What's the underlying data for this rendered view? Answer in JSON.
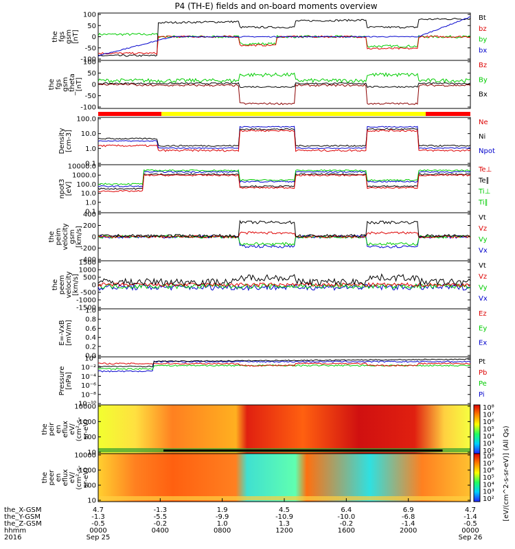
{
  "chart_data": {
    "type": "line",
    "title": "P4 (TH-E) fields and on-board moments overview",
    "status_bar": [
      "red",
      "yellow",
      "red"
    ],
    "panels": [
      {
        "id": "fgs",
        "ylabel": [
          "the",
          "fgs",
          "gsm",
          "[nT]"
        ],
        "yticks": [
          "100",
          "50",
          "0",
          "-50",
          "-100"
        ],
        "ylim": [
          -100,
          100
        ],
        "legend": [
          [
            "Bt",
            "#000"
          ],
          [
            "bz",
            "#d00"
          ],
          [
            "by",
            "#0c0"
          ],
          [
            "bx",
            "#00c"
          ]
        ]
      },
      {
        "id": "fgs_theta",
        "ylabel": [
          "the",
          "fgs",
          "gsm",
          "_theta",
          "[nT]"
        ],
        "yticks": [
          "100",
          "50",
          "0",
          "-50",
          "-100"
        ],
        "ylim": [
          -100,
          100
        ],
        "legend": [
          [
            "Bz",
            "#d00"
          ],
          [
            "By",
            "#0c0"
          ],
          [
            "Bx",
            "#000"
          ]
        ]
      },
      {
        "id": "density",
        "ylabel": [
          "Density",
          "[cm-3]"
        ],
        "yticks": [
          "100.0",
          "10.0",
          "1.0",
          "0.1"
        ],
        "log": true,
        "ylim": [
          0.1,
          100
        ],
        "legend": [
          [
            "Ne",
            "#d00"
          ],
          [
            "Ni",
            "#000"
          ],
          [
            "Npot",
            "#00c"
          ]
        ]
      },
      {
        "id": "temp",
        "ylabel": [
          "npot3",
          "[eV]"
        ],
        "yticks": [
          "10000.0",
          "1000.0",
          "100.0",
          "10.0",
          "1.0",
          "0.1"
        ],
        "log": true,
        "ylim": [
          0.1,
          10000
        ],
        "legend": [
          [
            "Te⊥",
            "#d00"
          ],
          [
            "Te∥",
            "#000"
          ],
          [
            "Ti⊥",
            "#0c0"
          ],
          [
            "Ti∥",
            "#0c0"
          ]
        ]
      },
      {
        "id": "peim_v",
        "ylabel": [
          "the",
          "peim",
          "velocity",
          "gsm",
          "[km/s]"
        ],
        "yticks": [
          "400",
          "200",
          "0",
          "-200",
          "-400"
        ],
        "ylim": [
          -400,
          400
        ],
        "legend": [
          [
            "Vt",
            "#000"
          ],
          [
            "Vz",
            "#d00"
          ],
          [
            "Vy",
            "#0c0"
          ],
          [
            "Vx",
            "#00c"
          ]
        ]
      },
      {
        "id": "peem_v",
        "ylabel": [
          "the",
          "peem",
          "velocity",
          "[km/s]"
        ],
        "yticks": [
          "1500",
          "1000",
          "500",
          "0",
          "-500",
          "-1000",
          "-1500"
        ],
        "ylim": [
          -1500,
          1500
        ],
        "legend": [
          [
            "Vt",
            "#000"
          ],
          [
            "Vz",
            "#d00"
          ],
          [
            "Vy",
            "#0c0"
          ],
          [
            "Vx",
            "#00c"
          ]
        ]
      },
      {
        "id": "efield",
        "ylabel": [
          "E=-VxB",
          "[mV/m]"
        ],
        "yticks": [
          "1.0",
          "0.8",
          "0.6",
          "0.4",
          "0.2",
          "0.0"
        ],
        "ylim": [
          0,
          1
        ],
        "legend": [
          [
            "Ez",
            "#d00"
          ],
          [
            "Ey",
            "#0c0"
          ],
          [
            "Ex",
            "#00c"
          ]
        ]
      },
      {
        "id": "pressure",
        "ylabel": [
          "Pressure",
          "[nPa]"
        ],
        "yticks": [
          "10⁰",
          "10⁻²",
          "10⁻⁴",
          "10⁻⁶",
          "10⁻⁸",
          "10⁻¹⁰"
        ],
        "log": true,
        "ylim": [
          1e-10,
          1
        ],
        "legend": [
          [
            "Pt",
            "#000"
          ],
          [
            "Pb",
            "#d00"
          ],
          [
            "Pe",
            "#0c0"
          ],
          [
            "Pi",
            "#00c"
          ]
        ]
      },
      {
        "id": "peir_flux",
        "ylabel": [
          "the",
          "peir",
          "en",
          "eflux",
          "eV/",
          "(cm²-s-",
          "sr-eV)"
        ],
        "yticks": [
          "10000",
          "1000",
          "100",
          "10"
        ],
        "type": "heatmap"
      },
      {
        "id": "peer_flux",
        "ylabel": [
          "the",
          "peer",
          "en",
          "eflux",
          "eV/",
          "(cm²-s-",
          "sr-eV)"
        ],
        "yticks": [
          "10000",
          "1000",
          "100",
          "10"
        ],
        "type": "heatmap"
      }
    ],
    "colorbar": {
      "ticks": [
        "10⁸",
        "10⁷",
        "10⁶",
        "10⁵",
        "10⁴",
        "10³",
        "10²"
      ],
      "label": "[eV/(cm^2-s-sr-eV)] (All Qs)"
    },
    "xaxis": {
      "row_labels": [
        "the_X-GSM",
        "the_Y-GSM",
        "the_Z-GSM",
        "hhmm",
        "2016"
      ],
      "columns": [
        {
          "x": [
            "4.7",
            "-1.3",
            "-0.5",
            "0000",
            "Sep 25"
          ]
        },
        {
          "x": [
            "-1.3",
            "-5.5",
            "-0.2",
            "0400",
            ""
          ]
        },
        {
          "x": [
            "1.9",
            "-9.9",
            "1.0",
            "0800",
            ""
          ]
        },
        {
          "x": [
            "4.5",
            "-10.9",
            "1.3",
            "1200",
            ""
          ]
        },
        {
          "x": [
            "6.4",
            "-10.0",
            "-0.2",
            "1600",
            ""
          ]
        },
        {
          "x": [
            "6.9",
            "-6.8",
            "-1.4",
            "2000",
            ""
          ]
        },
        {
          "x": [
            "4.7",
            "-1.4",
            "-0.5",
            "0000",
            "Sep 26"
          ]
        }
      ]
    }
  }
}
